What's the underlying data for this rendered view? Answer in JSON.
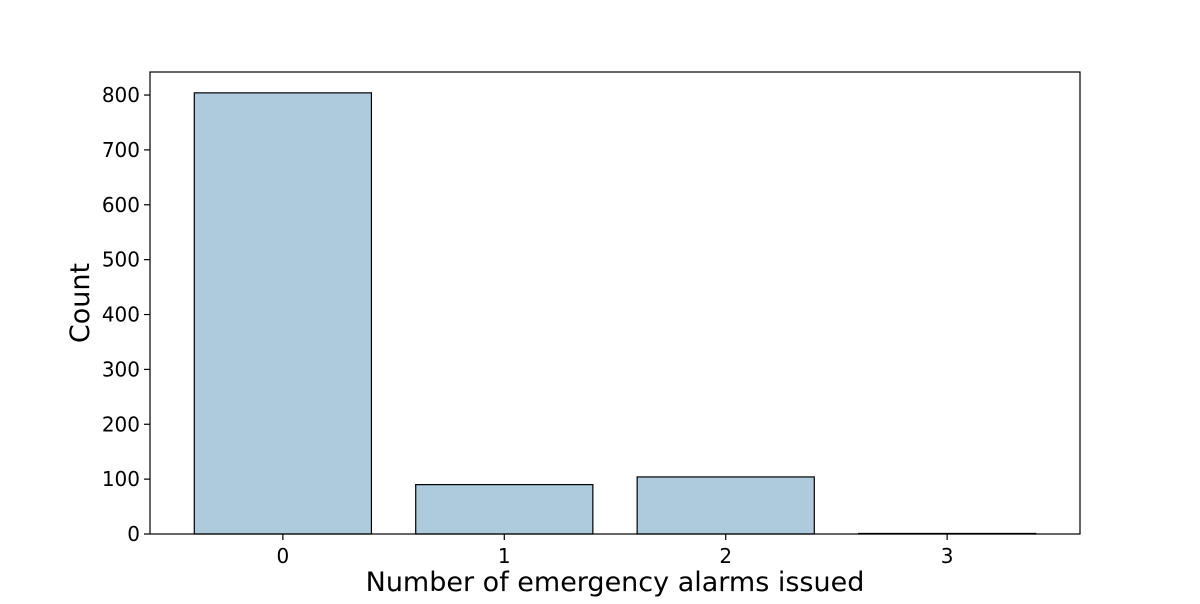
{
  "chart_data": {
    "type": "bar",
    "title": "",
    "xlabel": "Number of emergency alarms issued",
    "ylabel": "Count",
    "categories": [
      "0",
      "1",
      "2",
      "3"
    ],
    "values": [
      804,
      90,
      104,
      1
    ],
    "ylim": [
      0,
      842
    ],
    "yticks": [
      0,
      100,
      200,
      300,
      400,
      500,
      600,
      700,
      800
    ],
    "grid": false,
    "legend": "none",
    "colors": {
      "bar_fill": "#aecbdd",
      "bar_edge": "#000000",
      "axis": "#000000"
    }
  }
}
